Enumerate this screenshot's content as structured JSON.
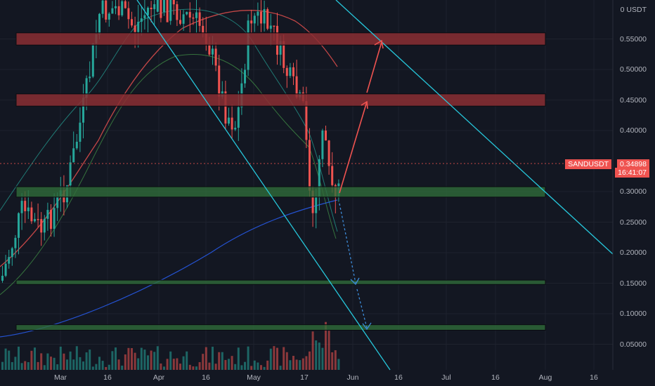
{
  "symbol": "SANDUSDT",
  "currency_label": "0 USDT",
  "last_price": "0.34898",
  "countdown": "16:41:07",
  "colors": {
    "background": "#131722",
    "up": "#26a69a",
    "down": "#ef5350",
    "resistance_zone": "#8b2e33",
    "support_zone": "#2f6b3a",
    "trendline": "#26c6da",
    "projection_up": "#ef5350",
    "projection_down": "#3d8bd9"
  },
  "price_axis": {
    "labels": [
      "0.55000",
      "0.50000",
      "0.45000",
      "0.40000",
      "0.30000",
      "0.25000",
      "0.20000",
      "0.15000",
      "0.10000",
      "0.05000"
    ]
  },
  "time_axis": {
    "labels": [
      "Mar",
      "16",
      "Apr",
      "16",
      "May",
      "17",
      "Jun",
      "16",
      "Jul",
      "16",
      "Aug",
      "16"
    ]
  },
  "chart_data": {
    "type": "candlestick",
    "ylim": [
      0.0,
      0.585
    ],
    "zones": [
      {
        "kind": "resistance",
        "low": 0.54,
        "high": 0.56
      },
      {
        "kind": "resistance",
        "low": 0.44,
        "high": 0.46
      },
      {
        "kind": "support",
        "low": 0.291,
        "high": 0.308
      },
      {
        "kind": "support",
        "low": 0.148,
        "high": 0.155
      },
      {
        "kind": "support",
        "low": 0.073,
        "high": 0.082
      }
    ]
  }
}
